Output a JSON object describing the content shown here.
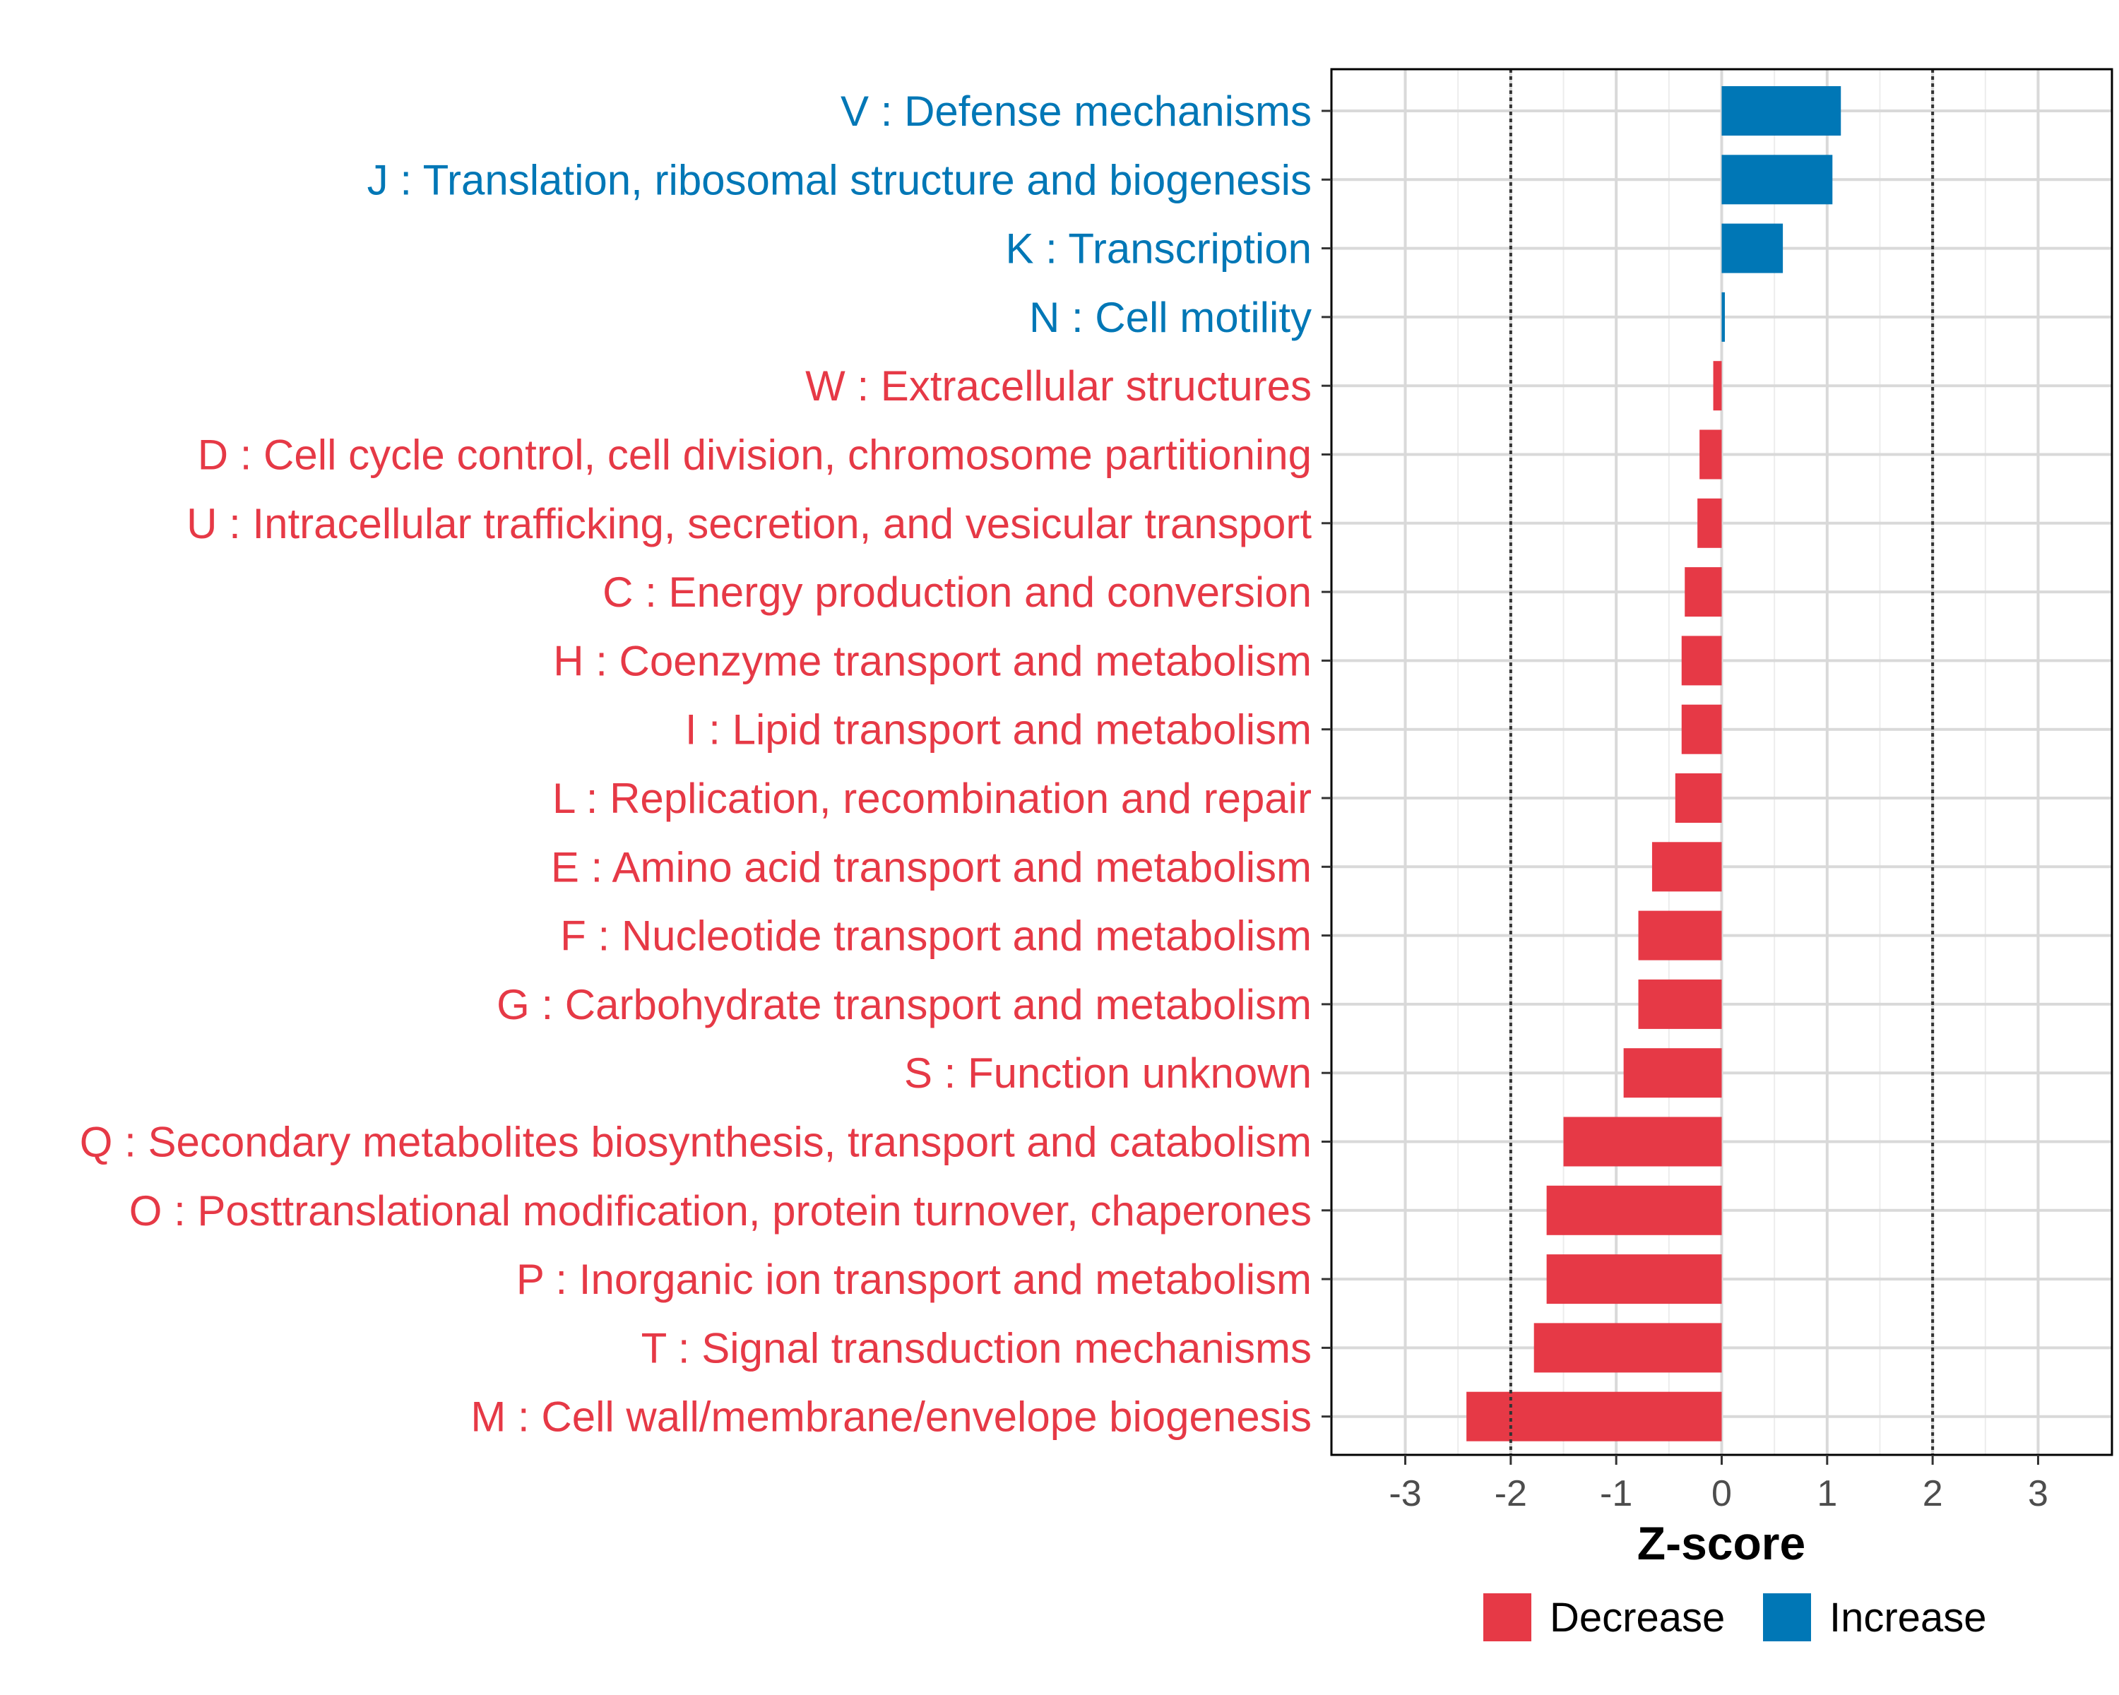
{
  "chart_data": {
    "type": "bar",
    "orientation": "horizontal",
    "title": "",
    "xlabel": "Z-score",
    "ylabel": "",
    "xlim": [
      -3.7,
      3.7
    ],
    "xticks": [
      -3,
      -2,
      -1,
      0,
      1,
      2,
      3
    ],
    "xtick_labels": [
      "-3",
      "-2",
      "-1",
      "0",
      "1",
      "2",
      "3"
    ],
    "reference_lines": [
      -2,
      2
    ],
    "grid": true,
    "legend": {
      "position": "bottom",
      "entries": [
        {
          "label": "Decrease",
          "color": "#E63946"
        },
        {
          "label": "Increase",
          "color": "#0077B6"
        }
      ]
    },
    "categories": [
      {
        "label": "V : Defense mechanisms",
        "value": 1.13,
        "group": "Increase"
      },
      {
        "label": "J : Translation, ribosomal structure and biogenesis",
        "value": 1.05,
        "group": "Increase"
      },
      {
        "label": "K : Transcription",
        "value": 0.58,
        "group": "Increase"
      },
      {
        "label": "N : Cell motility",
        "value": 0.03,
        "group": "Increase"
      },
      {
        "label": "W : Extracellular structures",
        "value": -0.08,
        "group": "Decrease"
      },
      {
        "label": "D : Cell cycle control, cell division, chromosome partitioning",
        "value": -0.21,
        "group": "Decrease"
      },
      {
        "label": "U : Intracellular trafficking, secretion, and vesicular transport",
        "value": -0.23,
        "group": "Decrease"
      },
      {
        "label": "C : Energy production and conversion",
        "value": -0.35,
        "group": "Decrease"
      },
      {
        "label": "H : Coenzyme transport and metabolism",
        "value": -0.38,
        "group": "Decrease"
      },
      {
        "label": "I : Lipid transport and metabolism",
        "value": -0.38,
        "group": "Decrease"
      },
      {
        "label": "L : Replication, recombination and repair",
        "value": -0.44,
        "group": "Decrease"
      },
      {
        "label": "E : Amino acid transport and metabolism",
        "value": -0.66,
        "group": "Decrease"
      },
      {
        "label": "F : Nucleotide transport and metabolism",
        "value": -0.79,
        "group": "Decrease"
      },
      {
        "label": "G : Carbohydrate transport and metabolism",
        "value": -0.79,
        "group": "Decrease"
      },
      {
        "label": "S : Function unknown",
        "value": -0.93,
        "group": "Decrease"
      },
      {
        "label": "Q : Secondary metabolites biosynthesis, transport and catabolism",
        "value": -1.5,
        "group": "Decrease"
      },
      {
        "label": "O : Posttranslational modification, protein turnover, chaperones",
        "value": -1.66,
        "group": "Decrease"
      },
      {
        "label": "P : Inorganic ion transport and metabolism",
        "value": -1.66,
        "group": "Decrease"
      },
      {
        "label": "T : Signal transduction mechanisms",
        "value": -1.78,
        "group": "Decrease"
      },
      {
        "label": "M : Cell wall/membrane/envelope biogenesis",
        "value": -2.42,
        "group": "Decrease"
      }
    ]
  }
}
